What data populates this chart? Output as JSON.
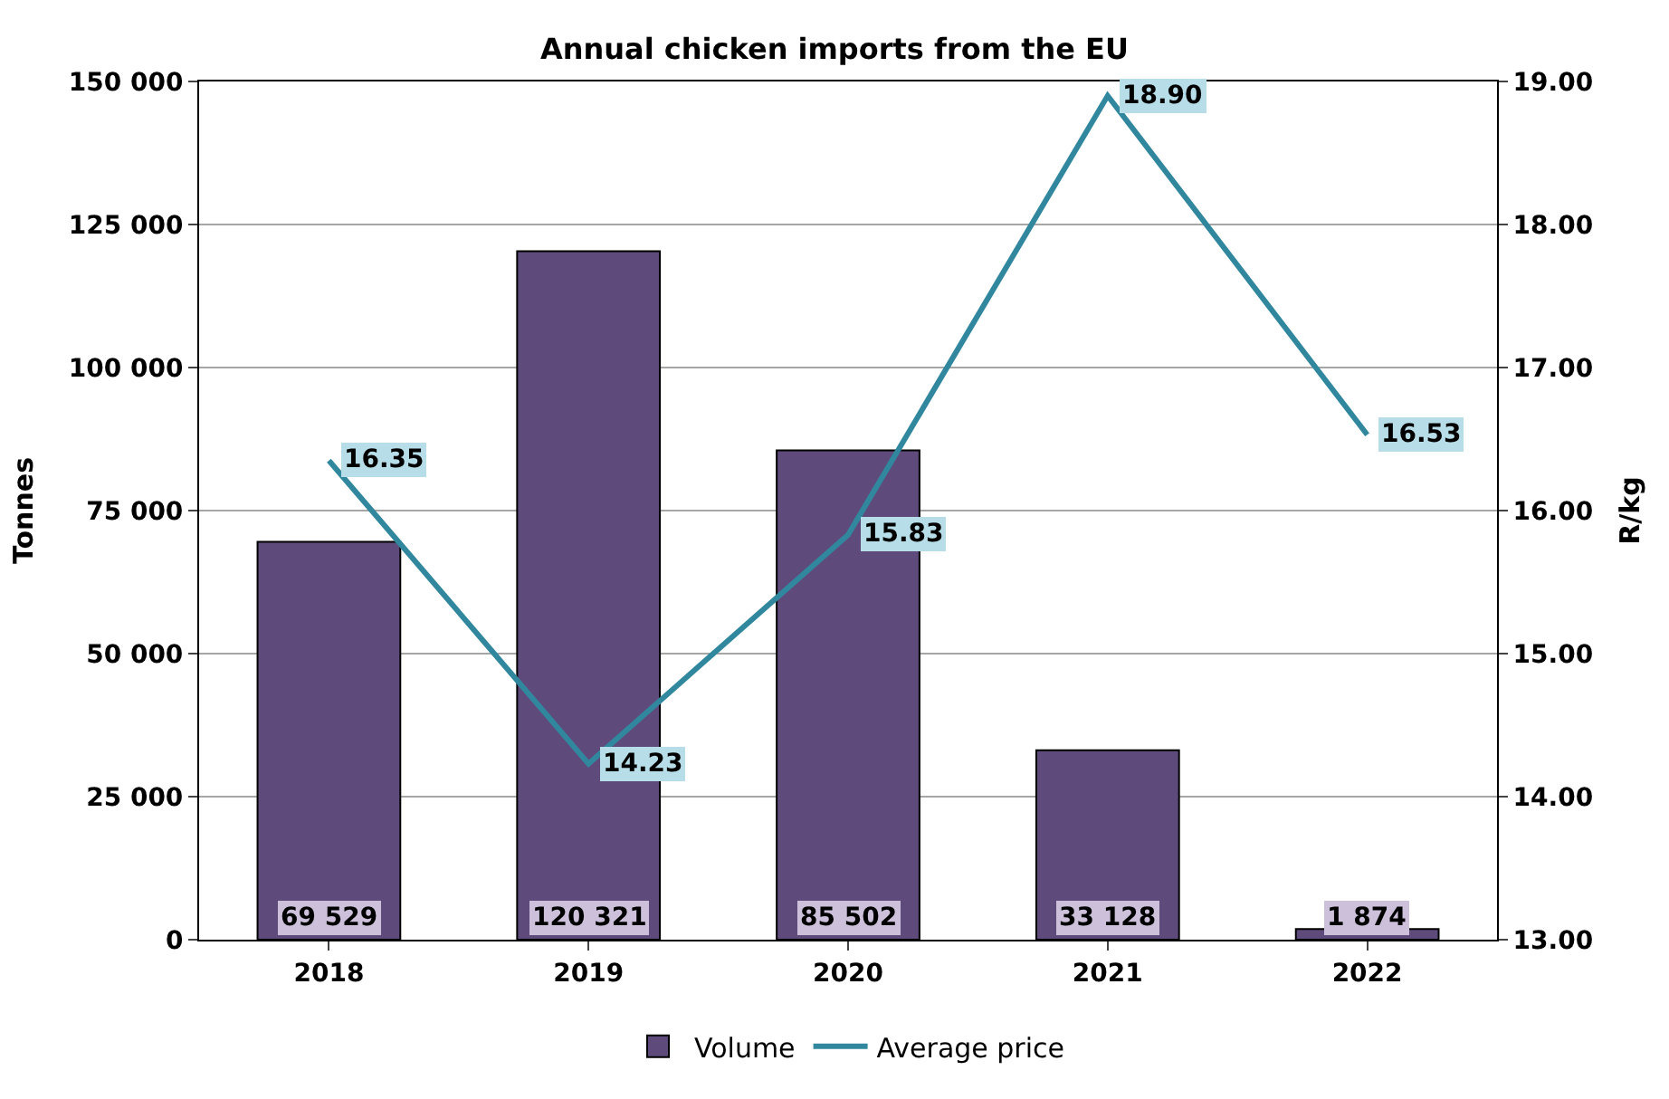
{
  "chart_data": {
    "type": "bar",
    "title": "Annual chicken imports from the EU",
    "ylabel": "Tonnes",
    "y2label": "R/kg",
    "categories": [
      "2018",
      "2019",
      "2020",
      "2021",
      "2022"
    ],
    "series": [
      {
        "name": "Volume",
        "color": "#5f4b7b",
        "values": [
          69529,
          120321,
          85502,
          33128,
          1874
        ],
        "value_labels": [
          "69 529",
          "120 321",
          "85 502",
          "33 128",
          "1 874"
        ]
      },
      {
        "name": "Average price",
        "type": "line",
        "axis": "y2",
        "color": "#31879d",
        "values": [
          16.35,
          14.23,
          15.83,
          18.9,
          16.53
        ],
        "value_labels": [
          "16.35",
          "14.23",
          "15.83",
          "18.90",
          "16.53"
        ]
      }
    ],
    "ylim": [
      0,
      150000
    ],
    "yticks": [
      0,
      {
        "value": 25000,
        "label": "25 000"
      },
      {
        "value": 50000,
        "label": "50 000"
      },
      {
        "value": 75000,
        "label": "75 000"
      },
      {
        "value": 100000,
        "label": "100 000"
      },
      {
        "value": 125000,
        "label": "125 000"
      },
      {
        "value": 150000,
        "label": "150 000"
      }
    ],
    "y2lim": [
      13,
      19
    ],
    "y2ticks": [
      {
        "value": 13,
        "label": "13.00"
      },
      {
        "value": 14,
        "label": "14.00"
      },
      {
        "value": 15,
        "label": "15.00"
      },
      {
        "value": 16,
        "label": "16.00"
      },
      {
        "value": 17,
        "label": "17.00"
      },
      {
        "value": 18,
        "label": "18.00"
      },
      {
        "value": 19,
        "label": "19.00"
      }
    ],
    "grid": "y",
    "legend": "bottom",
    "marker": "none",
    "line_style": "solid"
  }
}
